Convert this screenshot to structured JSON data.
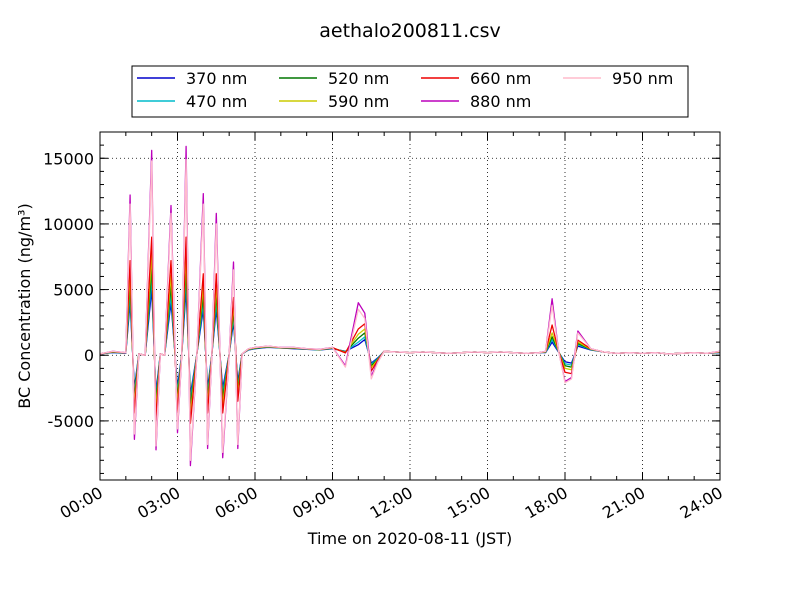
{
  "chart_data": {
    "type": "line",
    "title": "aethalo200811.csv",
    "xlabel": "Time on 2020-08-11 (JST)",
    "ylabel": "BC Concentration (ng/m³)",
    "xlim": [
      "00:00",
      "24:00"
    ],
    "ylim": [
      -9500,
      17000
    ],
    "grid": true,
    "legend_position": "top",
    "x_ticks": [
      "00:00",
      "03:00",
      "06:00",
      "09:00",
      "12:00",
      "15:00",
      "18:00",
      "21:00",
      "24:00"
    ],
    "y_ticks": [
      -5000,
      0,
      5000,
      10000,
      15000
    ],
    "x": [
      "00:00",
      "00:30",
      "01:00",
      "01:10",
      "01:20",
      "01:30",
      "01:45",
      "02:00",
      "02:10",
      "02:20",
      "02:30",
      "02:45",
      "03:00",
      "03:10",
      "03:20",
      "03:30",
      "03:45",
      "04:00",
      "04:10",
      "04:20",
      "04:30",
      "04:45",
      "05:00",
      "05:10",
      "05:20",
      "05:30",
      "05:45",
      "06:00",
      "06:30",
      "07:00",
      "07:30",
      "08:00",
      "08:30",
      "09:00",
      "09:30",
      "10:00",
      "10:15",
      "10:30",
      "10:45",
      "11:00",
      "11:30",
      "12:00",
      "12:30",
      "13:00",
      "13:30",
      "14:00",
      "14:30",
      "15:00",
      "15:30",
      "16:00",
      "16:30",
      "17:00",
      "17:15",
      "17:30",
      "17:45",
      "18:00",
      "18:15",
      "18:30",
      "19:00",
      "19:30",
      "20:00",
      "20:30",
      "21:00",
      "21:30",
      "22:00",
      "22:30",
      "23:00",
      "23:30",
      "24:00"
    ],
    "series": [
      {
        "name": "370 nm",
        "color": "#0000cc",
        "values": [
          100,
          200,
          150,
          4000,
          -2500,
          100,
          0,
          5000,
          -2800,
          100,
          0,
          4000,
          -2400,
          100,
          5000,
          -3000,
          100,
          3500,
          -2500,
          100,
          3500,
          -2500,
          100,
          2500,
          -2000,
          100,
          400,
          500,
          600,
          550,
          500,
          450,
          400,
          500,
          300,
          800,
          1200,
          -600,
          -200,
          300,
          250,
          200,
          250,
          200,
          150,
          200,
          250,
          200,
          250,
          200,
          150,
          200,
          200,
          1000,
          250,
          -500,
          -600,
          700,
          400,
          250,
          150,
          200,
          150,
          200,
          100,
          150,
          200,
          150,
          200
        ]
      },
      {
        "name": "470 nm",
        "color": "#00bbcc",
        "values": [
          100,
          220,
          160,
          4600,
          -2900,
          100,
          0,
          5800,
          -3200,
          100,
          0,
          4600,
          -2800,
          100,
          5800,
          -3400,
          100,
          4000,
          -2900,
          100,
          4000,
          -2900,
          100,
          2900,
          -2300,
          100,
          420,
          520,
          620,
          560,
          520,
          460,
          410,
          520,
          280,
          1000,
          1400,
          -700,
          -250,
          300,
          250,
          200,
          250,
          200,
          150,
          200,
          250,
          200,
          250,
          200,
          150,
          200,
          220,
          1200,
          280,
          -650,
          -750,
          800,
          420,
          250,
          150,
          200,
          150,
          200,
          100,
          150,
          200,
          150,
          220
        ]
      },
      {
        "name": "520 nm",
        "color": "#007700",
        "values": [
          100,
          240,
          170,
          5300,
          -3300,
          100,
          0,
          6600,
          -3600,
          100,
          0,
          5300,
          -3200,
          100,
          6600,
          -3900,
          100,
          4600,
          -3300,
          100,
          4600,
          -3300,
          100,
          3300,
          -2600,
          100,
          440,
          540,
          640,
          570,
          540,
          470,
          420,
          540,
          250,
          1300,
          1700,
          -800,
          -300,
          300,
          250,
          200,
          250,
          200,
          150,
          200,
          250,
          200,
          250,
          200,
          150,
          200,
          240,
          1400,
          300,
          -800,
          -900,
          900,
          440,
          250,
          150,
          200,
          150,
          200,
          100,
          150,
          200,
          150,
          240
        ]
      },
      {
        "name": "590 nm",
        "color": "#cccc00",
        "values": [
          100,
          260,
          180,
          6100,
          -3800,
          100,
          0,
          7700,
          -4200,
          100,
          0,
          6100,
          -3700,
          100,
          7700,
          -4500,
          100,
          5300,
          -3800,
          100,
          5300,
          -3800,
          100,
          3800,
          -3000,
          100,
          460,
          560,
          660,
          580,
          560,
          480,
          430,
          560,
          220,
          1600,
          2000,
          -950,
          -350,
          300,
          250,
          200,
          250,
          200,
          150,
          200,
          250,
          200,
          250,
          200,
          150,
          200,
          260,
          1700,
          320,
          -1000,
          -1100,
          1000,
          460,
          250,
          150,
          200,
          150,
          200,
          100,
          150,
          200,
          150,
          260
        ]
      },
      {
        "name": "660 nm",
        "color": "#ee0000",
        "values": [
          100,
          280,
          190,
          7200,
          -4400,
          100,
          0,
          9000,
          -4900,
          100,
          0,
          7200,
          -4300,
          100,
          9000,
          -5200,
          100,
          6200,
          -4400,
          100,
          6200,
          -4400,
          100,
          4400,
          -3500,
          100,
          480,
          580,
          680,
          590,
          580,
          490,
          440,
          580,
          180,
          2000,
          2400,
          -1200,
          -400,
          300,
          250,
          200,
          250,
          200,
          150,
          200,
          250,
          200,
          250,
          200,
          150,
          200,
          280,
          2300,
          340,
          -1300,
          -1400,
          1150,
          480,
          250,
          150,
          200,
          150,
          200,
          100,
          150,
          200,
          150,
          280
        ]
      },
      {
        "name": "880 nm",
        "color": "#bb00bb",
        "values": [
          100,
          300,
          200,
          12200,
          -6400,
          100,
          0,
          15600,
          -7200,
          100,
          0,
          11400,
          -5900,
          100,
          15900,
          -8400,
          100,
          12300,
          -7100,
          100,
          10800,
          -7800,
          100,
          7100,
          -7100,
          100,
          500,
          600,
          700,
          600,
          600,
          500,
          450,
          600,
          -800,
          4000,
          3200,
          -1600,
          -500,
          300,
          250,
          200,
          250,
          200,
          150,
          200,
          250,
          200,
          250,
          200,
          150,
          200,
          300,
          4300,
          350,
          -2000,
          -1700,
          1850,
          500,
          250,
          150,
          200,
          150,
          200,
          100,
          150,
          200,
          150,
          300
        ]
      },
      {
        "name": "950 nm",
        "color": "#ffbbcc",
        "values": [
          100,
          290,
          195,
          11500,
          -6000,
          100,
          0,
          14800,
          -6900,
          100,
          0,
          10800,
          -5600,
          100,
          14900,
          -8000,
          100,
          11500,
          -6800,
          100,
          10000,
          -7400,
          100,
          6500,
          -6800,
          100,
          490,
          590,
          690,
          595,
          590,
          495,
          445,
          590,
          -900,
          3500,
          2800,
          -1800,
          -550,
          300,
          250,
          200,
          250,
          200,
          150,
          200,
          250,
          200,
          250,
          200,
          150,
          200,
          290,
          3800,
          340,
          -2100,
          -1800,
          1700,
          490,
          250,
          150,
          200,
          150,
          200,
          100,
          150,
          200,
          150,
          290
        ]
      }
    ]
  }
}
